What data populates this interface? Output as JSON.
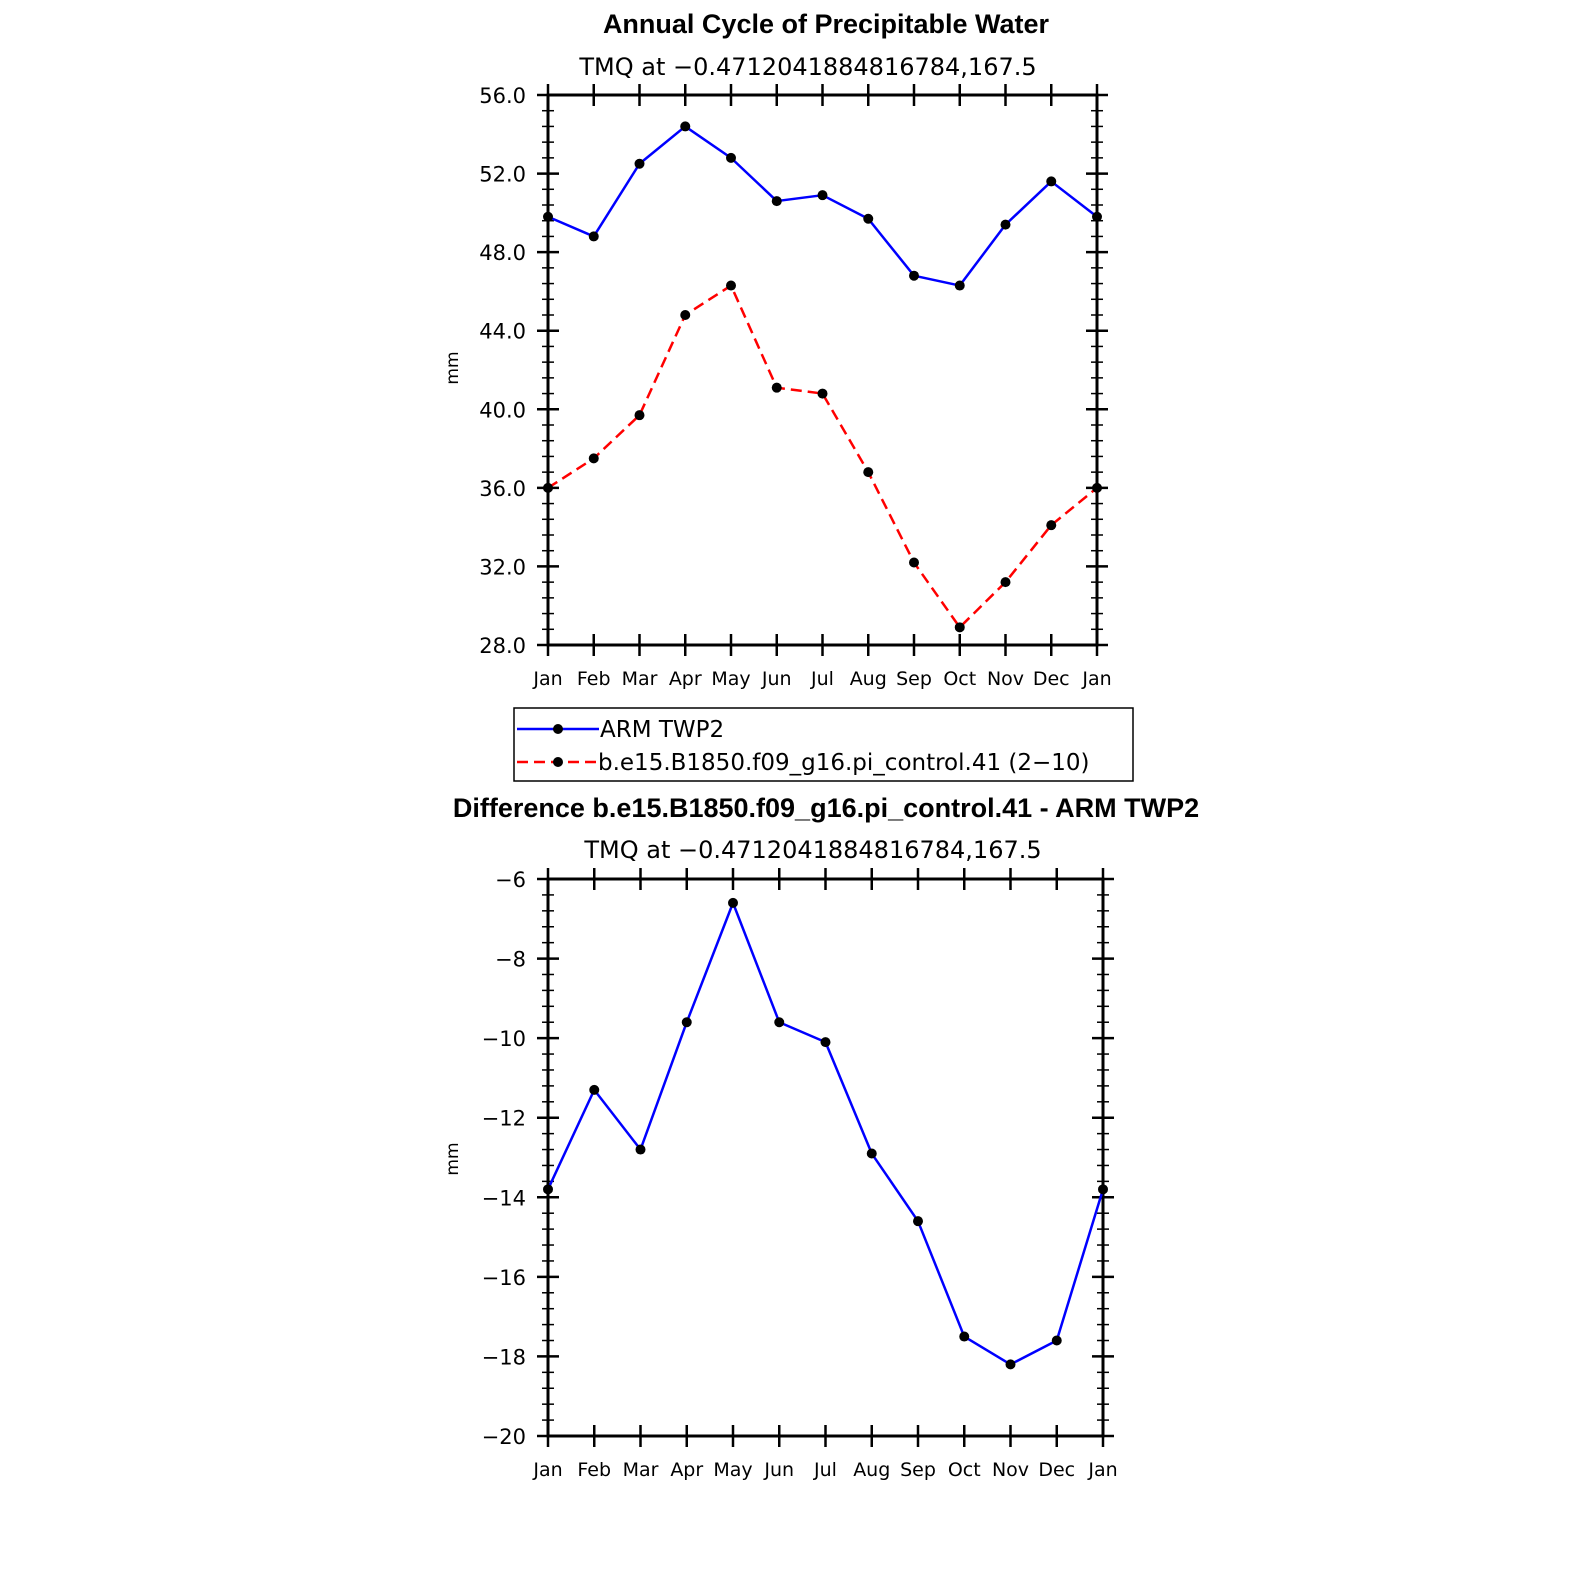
{
  "chart_data": [
    {
      "type": "line",
      "title": "Annual Cycle of Precipitable Water",
      "subtitle": "TMQ at −0.4712041884816784,167.5",
      "ylabel": "mm",
      "xlabel": "",
      "categories": [
        "Jan",
        "Feb",
        "Mar",
        "Apr",
        "May",
        "Jun",
        "Jul",
        "Aug",
        "Sep",
        "Oct",
        "Nov",
        "Dec",
        "Jan"
      ],
      "ylim": [
        28,
        56
      ],
      "yticks": [
        "28.0",
        "32.0",
        "36.0",
        "40.0",
        "44.0",
        "48.0",
        "52.0",
        "56.0"
      ],
      "grid": false,
      "legend_position": "below",
      "series": [
        {
          "name": "ARM TWP2",
          "color": "#0000ff",
          "style": "solid",
          "values": [
            49.8,
            48.8,
            52.5,
            54.4,
            52.8,
            50.6,
            50.9,
            49.7,
            46.8,
            46.3,
            49.4,
            51.6,
            49.8
          ]
        },
        {
          "name": "b.e15.B1850.f09_g16.pi_control.41 (2−10)",
          "color": "#ff0000",
          "style": "dashed",
          "values": [
            36.0,
            37.5,
            39.7,
            44.8,
            46.3,
            41.1,
            40.8,
            36.8,
            32.2,
            28.9,
            31.2,
            34.1,
            36.0
          ]
        }
      ]
    },
    {
      "type": "line",
      "title": "Difference b.e15.B1850.f09_g16.pi_control.41 - ARM TWP2",
      "subtitle": "TMQ at −0.4712041884816784,167.5",
      "ylabel": "mm",
      "xlabel": "",
      "categories": [
        "Jan",
        "Feb",
        "Mar",
        "Apr",
        "May",
        "Jun",
        "Jul",
        "Aug",
        "Sep",
        "Oct",
        "Nov",
        "Dec",
        "Jan"
      ],
      "ylim": [
        -20,
        -6
      ],
      "yticks": [
        "−20",
        "−18",
        "−16",
        "−14",
        "−12",
        "−10",
        "−8",
        "−6"
      ],
      "grid": false,
      "series": [
        {
          "name": "",
          "color": "#0000ff",
          "style": "solid",
          "values": [
            -13.8,
            -11.3,
            -12.8,
            -9.6,
            -6.6,
            -9.6,
            -10.1,
            -12.9,
            -14.6,
            -17.5,
            -18.2,
            -17.6,
            -13.8
          ]
        }
      ]
    }
  ]
}
